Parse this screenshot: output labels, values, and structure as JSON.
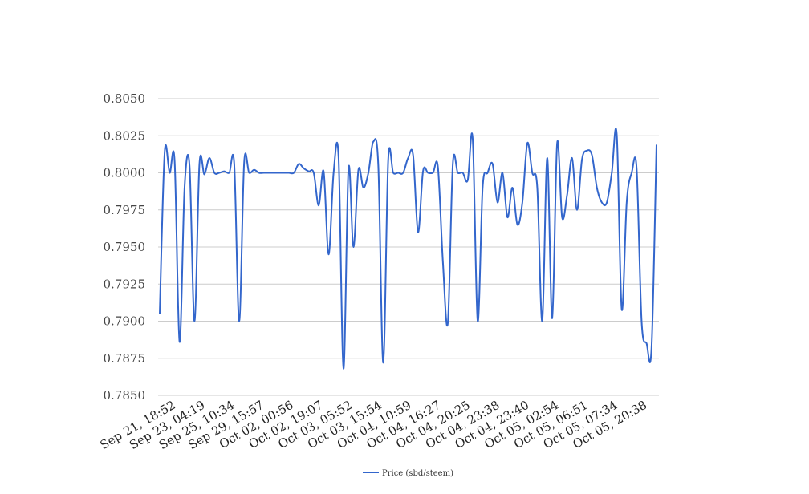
{
  "chart_data": {
    "type": "line",
    "title": "",
    "xlabel": "",
    "ylabel": "",
    "ylim": [
      0.785,
      0.805
    ],
    "y_ticks": [
      "0.7850",
      "0.7875",
      "0.7900",
      "0.7925",
      "0.7950",
      "0.7975",
      "0.8000",
      "0.8025",
      "0.8050"
    ],
    "x_tick_labels": [
      "Sep 21, 18:52",
      "Sep 23, 04:19",
      "Sep 25, 10:34",
      "Sep 29, 15:57",
      "Oct 02, 00:56",
      "Oct 02, 19:07",
      "Oct 03, 05:52",
      "Oct 03, 15:54",
      "Oct 04, 10:59",
      "Oct 04, 16:27",
      "Oct 04, 20:25",
      "Oct 04, 23:38",
      "Oct 04, 23:40",
      "Oct 05, 02:54",
      "Oct 05, 06:51",
      "Oct 05, 07:34",
      "Oct 05, 20:38"
    ],
    "grid": true,
    "legend_position": "bottom",
    "series": [
      {
        "name": "Price (sbd/steem)",
        "color": "#3366cc",
        "values": [
          0.7905,
          0.8014,
          0.8,
          0.8008,
          0.7886,
          0.799,
          0.8005,
          0.79,
          0.8006,
          0.7999,
          0.801,
          0.8,
          0.8,
          0.8001,
          0.8,
          0.8006,
          0.79,
          0.8007,
          0.8,
          0.8002,
          0.8,
          0.8,
          0.8,
          0.8,
          0.8,
          0.8,
          0.8,
          0.8,
          0.8006,
          0.8003,
          0.8001,
          0.8,
          0.7978,
          0.8001,
          0.7945,
          0.8,
          0.8011,
          0.7868,
          0.8003,
          0.795,
          0.8002,
          0.799,
          0.8,
          0.8021,
          0.8005,
          0.7872,
          0.8009,
          0.8,
          0.8,
          0.8,
          0.801,
          0.8012,
          0.796,
          0.8001,
          0.8,
          0.8,
          0.8004,
          0.794,
          0.7899,
          0.8006,
          0.8,
          0.8,
          0.7995,
          0.8023,
          0.79,
          0.799,
          0.8,
          0.8006,
          0.798,
          0.8,
          0.797,
          0.799,
          0.7965,
          0.798,
          0.802,
          0.8,
          0.799,
          0.79,
          0.801,
          0.7902,
          0.802,
          0.797,
          0.7985,
          0.801,
          0.7975,
          0.8009,
          0.8015,
          0.8012,
          0.799,
          0.798,
          0.798,
          0.8,
          0.8026,
          0.7908,
          0.798,
          0.8,
          0.8003,
          0.79,
          0.7885,
          0.7882,
          0.8019
        ]
      }
    ]
  }
}
